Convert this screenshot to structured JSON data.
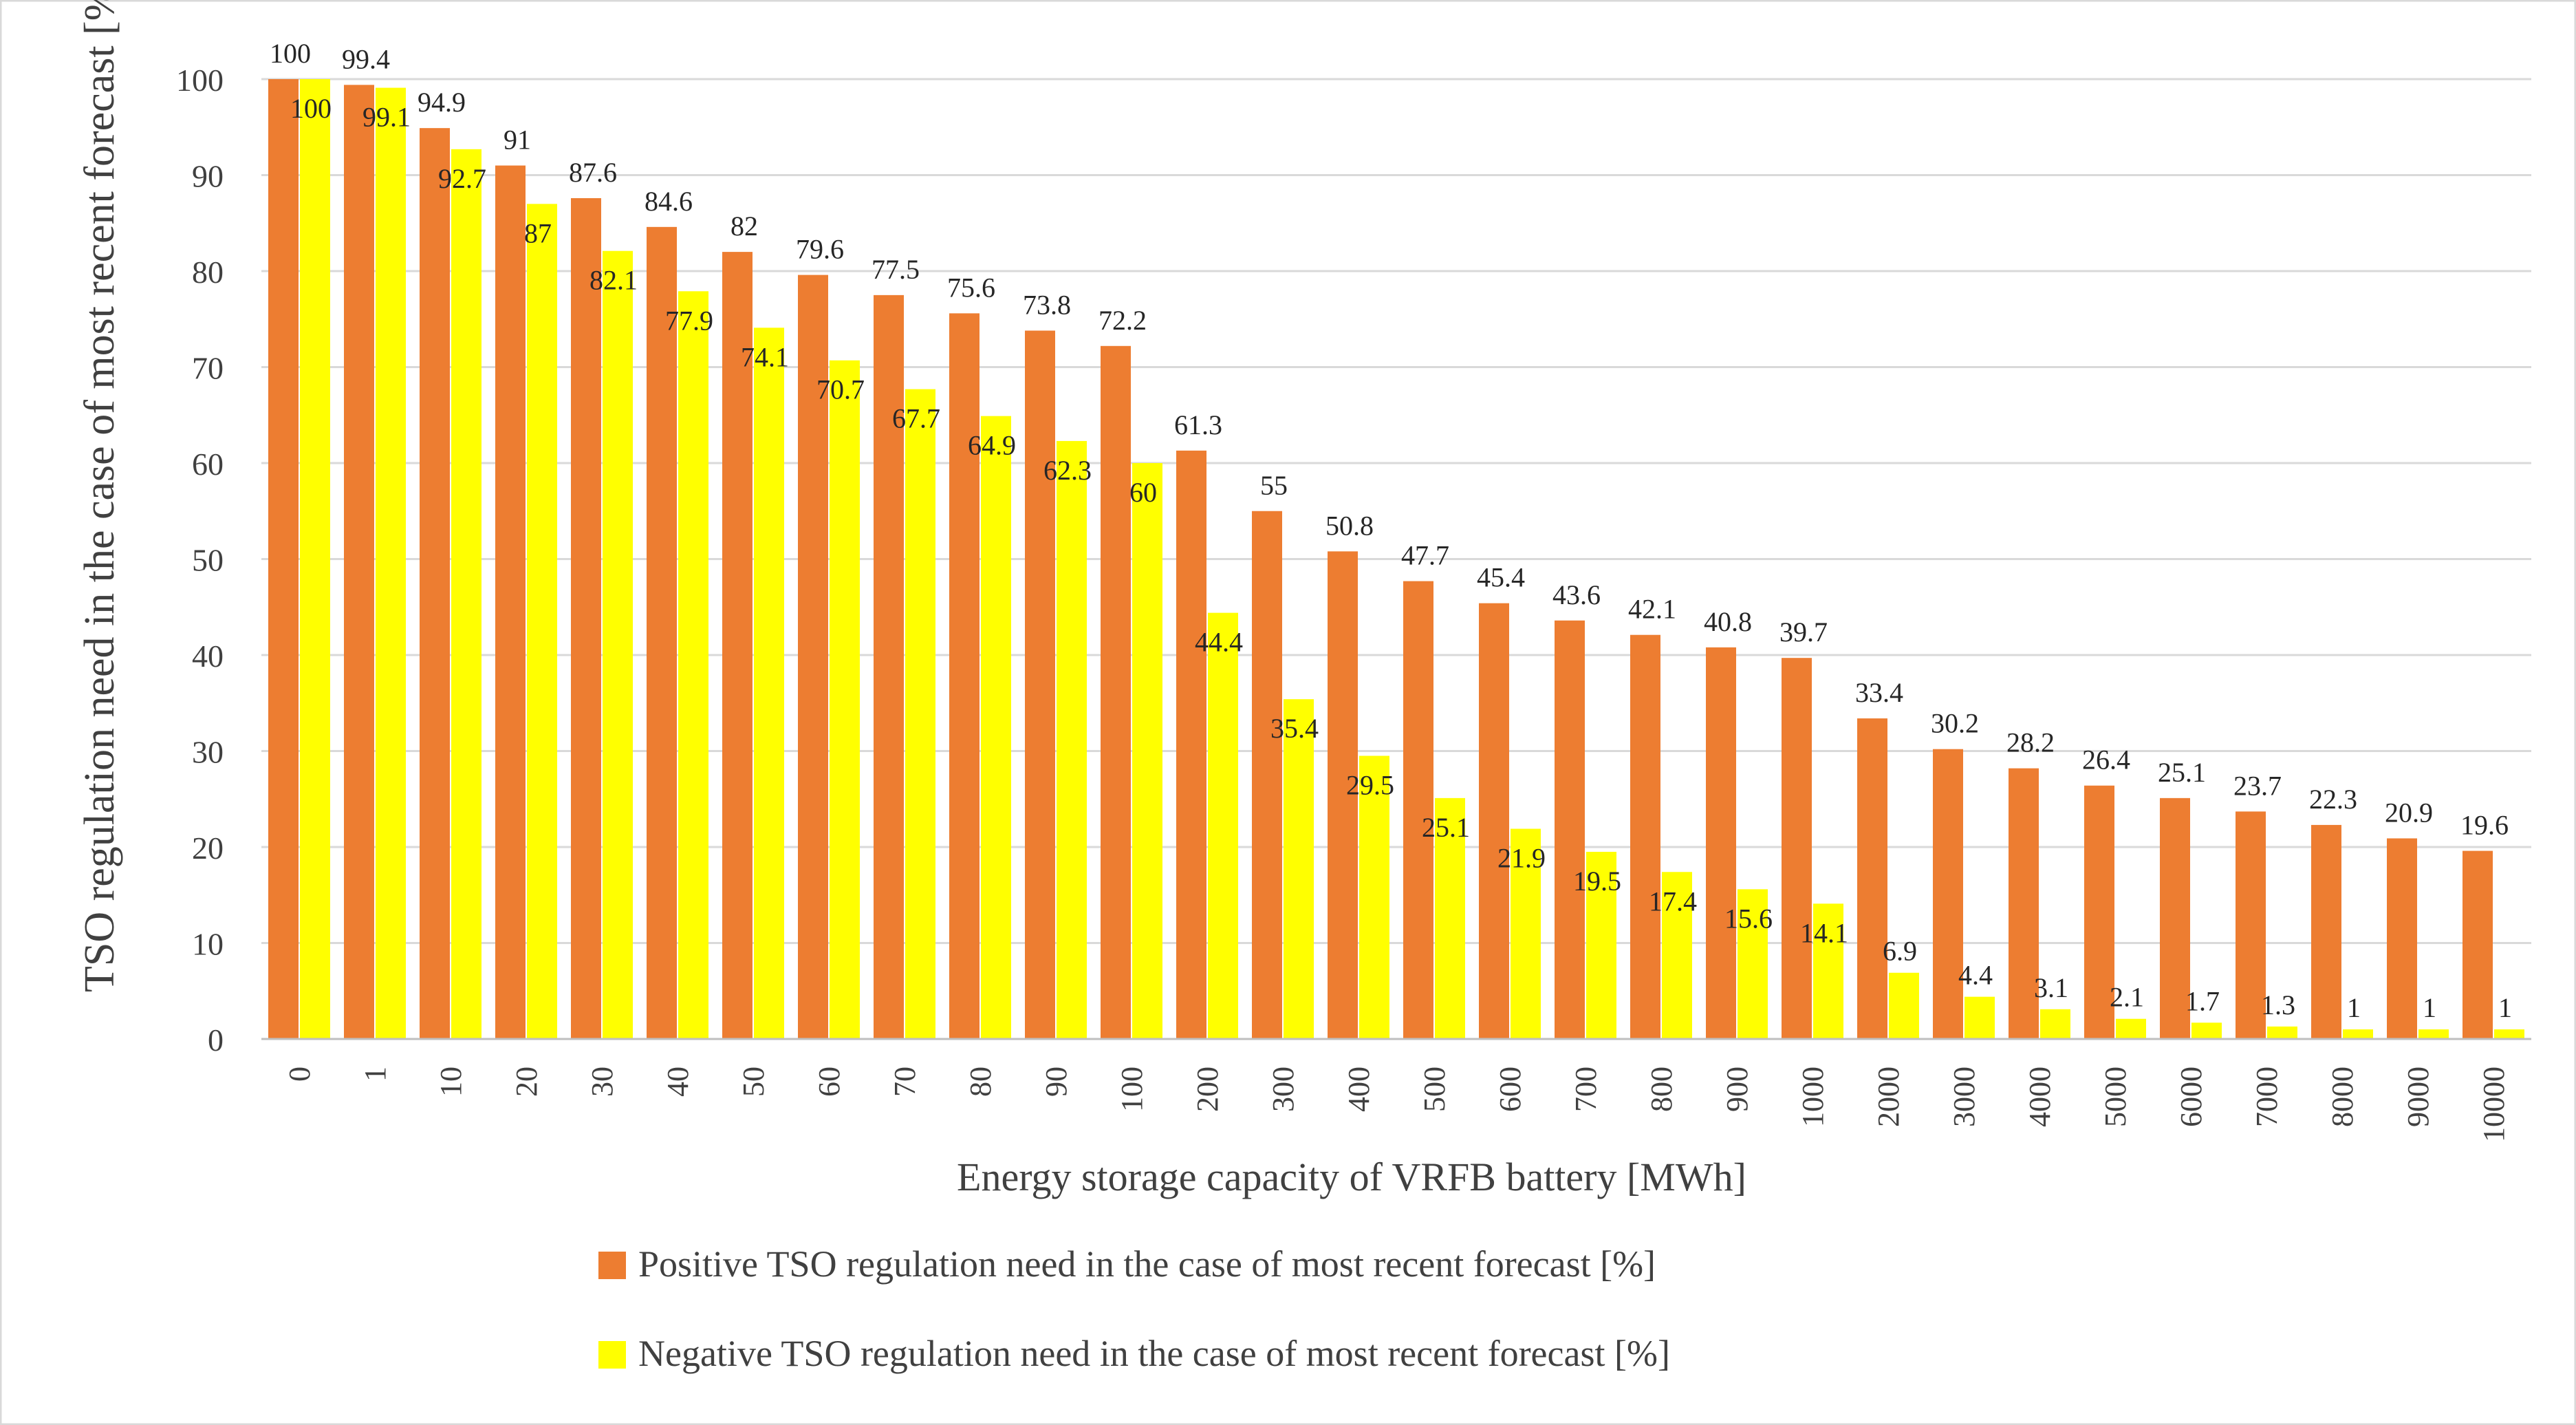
{
  "chart_data": {
    "type": "bar",
    "title": "",
    "xlabel": "Energy storage capacity of VRFB battery [MWh]",
    "ylabel": "TSO regulation need in the case of most recent forecast [%]",
    "ylim": [
      0,
      100
    ],
    "ytick_step": 10,
    "grid": true,
    "legend_position": "bottom",
    "categories": [
      "0",
      "1",
      "10",
      "20",
      "30",
      "40",
      "50",
      "60",
      "70",
      "80",
      "90",
      "100",
      "200",
      "300",
      "400",
      "500",
      "600",
      "700",
      "800",
      "900",
      "1000",
      "2000",
      "3000",
      "4000",
      "5000",
      "6000",
      "7000",
      "8000",
      "9000",
      "10000"
    ],
    "series": [
      {
        "name": "Positive TSO regulation need in the case of most recent forecast [%]",
        "color": "#ED7D31",
        "values": [
          100,
          99.4,
          94.9,
          91,
          87.6,
          84.6,
          82,
          79.6,
          77.5,
          75.6,
          73.8,
          72.2,
          61.3,
          55,
          50.8,
          47.7,
          45.4,
          43.6,
          42.1,
          40.8,
          39.7,
          33.4,
          30.2,
          28.2,
          26.4,
          25.1,
          23.7,
          22.3,
          20.9,
          19.6
        ]
      },
      {
        "name": "Negative TSO regulation need in the case of most recent forecast [%]",
        "color": "#FFFF00",
        "values": [
          100,
          99.1,
          92.7,
          87,
          82.1,
          77.9,
          74.1,
          70.7,
          67.7,
          64.9,
          62.3,
          60,
          44.4,
          35.4,
          29.5,
          25.1,
          21.9,
          19.5,
          17.4,
          15.6,
          14.1,
          6.9,
          4.4,
          3.1,
          2.1,
          1.7,
          1.3,
          1,
          1,
          1
        ]
      }
    ]
  }
}
